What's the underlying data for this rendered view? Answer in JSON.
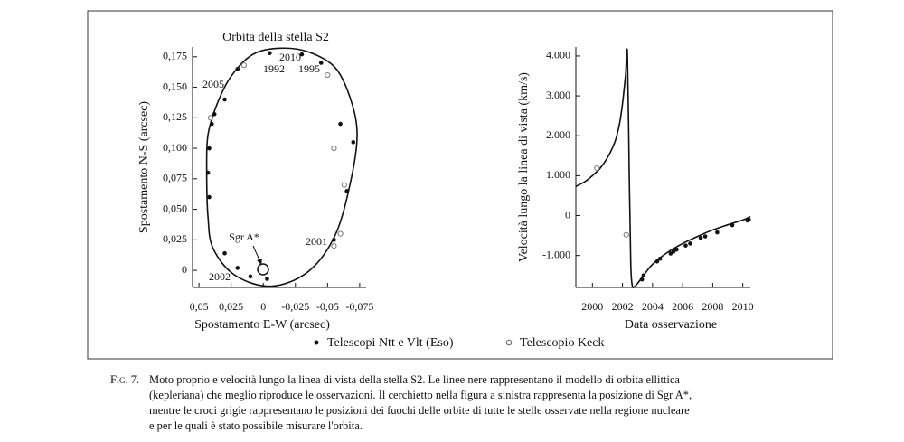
{
  "chart_data": [
    {
      "type": "scatter",
      "title": "Orbita della stella S2",
      "xlabel": "Spostamento E-W (arcsec)",
      "ylabel": "Spostamento N-S (arcsec)",
      "xlim": [
        0.055,
        -0.08
      ],
      "ylim": [
        -0.014,
        0.183
      ],
      "xticks": [
        {
          "value": 0.05,
          "label": "0,05"
        },
        {
          "value": 0.025,
          "label": "0,025"
        },
        0,
        {
          "value": -0.025,
          "label": "-0,025"
        },
        {
          "value": -0.05,
          "label": "-0,05"
        },
        {
          "value": -0.075,
          "label": "-0,075"
        }
      ],
      "yticks": [
        0,
        {
          "value": 0.025,
          "label": "0,025"
        },
        {
          "value": 0.05,
          "label": "0,050"
        },
        {
          "value": 0.075,
          "label": "0,075"
        },
        {
          "value": 0.1,
          "label": "0,100"
        },
        {
          "value": 0.125,
          "label": "0,125"
        },
        {
          "value": 0.15,
          "label": "0,150"
        },
        {
          "value": 0.175,
          "label": "0,175"
        }
      ],
      "annotations": [
        "2010",
        "1992",
        "1995",
        "2005",
        "2001",
        "2002",
        "Sgr A*"
      ],
      "series": [
        {
          "color": "#111111",
          "line": true,
          "closed": true,
          "x": [
            0.044,
            0.043,
            0.039,
            0.022,
            -0.006,
            -0.035,
            -0.056,
            -0.068,
            -0.073,
            -0.068,
            -0.056,
            -0.035,
            -0.013,
            0.008,
            0.025,
            0.036,
            0.043
          ],
          "values": [
            0.081,
            0.044,
            0.018,
            -0.004,
            -0.013,
            -0.001,
            0.029,
            0.073,
            0.111,
            0.14,
            0.166,
            0.179,
            0.182,
            0.177,
            0.159,
            0.136,
            0.111
          ]
        },
        {
          "name": "Telescopi Ntt e Vlt (Eso)",
          "color": "#111111",
          "marker": "filled",
          "x": [
            0.04,
            0.042,
            0.043,
            0.042,
            0.03,
            0.02,
            -0.005,
            -0.03,
            -0.045,
            -0.06,
            -0.07,
            -0.065,
            -0.055,
            0.03,
            0.02,
            0.01,
            -0.003,
            0.038
          ],
          "values": [
            0.12,
            0.1,
            0.08,
            0.06,
            0.14,
            0.165,
            0.178,
            0.177,
            0.17,
            0.12,
            0.105,
            0.065,
            0.025,
            0.014,
            0.002,
            -0.005,
            -0.007,
            0.128
          ]
        },
        {
          "name": "Telescopio Keck",
          "color": "#777777",
          "marker": "open",
          "x": [
            0.041,
            0.015,
            -0.05,
            -0.055,
            -0.063,
            -0.06,
            -0.055
          ],
          "values": [
            0.125,
            0.168,
            0.16,
            0.1,
            0.07,
            0.03,
            0.02
          ]
        }
      ]
    },
    {
      "type": "line",
      "xlabel": "Data osservazione",
      "ylabel": "Velocità lungo la linea di vista (km/s)",
      "xlim": [
        1998.9,
        2010.5
      ],
      "ylim": [
        -1800,
        4225
      ],
      "xticks": [
        2000,
        2002,
        2004,
        2006,
        2008,
        2010
      ],
      "yticks": [
        {
          "value": -1000,
          "label": "-1.000"
        },
        0,
        {
          "value": 1000,
          "label": "1.000"
        },
        {
          "value": 2000,
          "label": "2.000"
        },
        {
          "value": 3000,
          "label": "3.000"
        },
        {
          "value": 4000,
          "label": "4.000"
        }
      ],
      "series": [
        {
          "color": "#111111",
          "line": true,
          "x": [
            1998.9,
            1999.5,
            2000,
            2000.5,
            2001,
            2001.5,
            2001.8,
            2002.0,
            2002.2,
            2002.33,
            2002.45,
            2002.55,
            2002.65,
            2002.8,
            2003,
            2003.5,
            2004,
            2005,
            2006,
            2007,
            2008,
            2009,
            2010,
            2010.5
          ],
          "values": [
            730,
            850,
            1000,
            1180,
            1450,
            1850,
            2300,
            2800,
            3500,
            4050,
            1000,
            -1200,
            -1750,
            -1780,
            -1700,
            -1450,
            -1220,
            -920,
            -700,
            -520,
            -360,
            -230,
            -110,
            -25
          ]
        },
        {
          "color": "#111111",
          "marker": "filled",
          "x": [
            2003.3,
            2003.4,
            2004.3,
            2004.5,
            2005.2,
            2005.4,
            2005.6,
            2006.2,
            2006.5,
            2007.2,
            2007.5,
            2008.3,
            2009.3,
            2010.3,
            2010.4
          ],
          "values": [
            -1600,
            -1500,
            -1150,
            -1080,
            -950,
            -900,
            -850,
            -750,
            -700,
            -560,
            -520,
            -420,
            -240,
            -120,
            -100
          ]
        },
        {
          "color": "#777777",
          "marker": "open",
          "x": [
            2000.3,
            2002.25
          ],
          "values": [
            1190,
            -480
          ]
        }
      ]
    }
  ],
  "caption": {
    "label": "Fig. 7.",
    "lines": [
      "Moto proprio e velocità lungo la linea di vista della stella S2. Le linee nere rappresentano il modello di orbita ellittica",
      "(kepleriana) che meglio riproduce le osservazioni. Il cerchietto nella figura a sinistra rappresenta la posizione di Sgr A*,",
      "mentre le croci grigie rappresentano le posizioni dei fuochi delle orbite di tutte le stelle osservate nella regione nucleare",
      "e per le quali è stato possibile misurare l'orbita."
    ]
  }
}
